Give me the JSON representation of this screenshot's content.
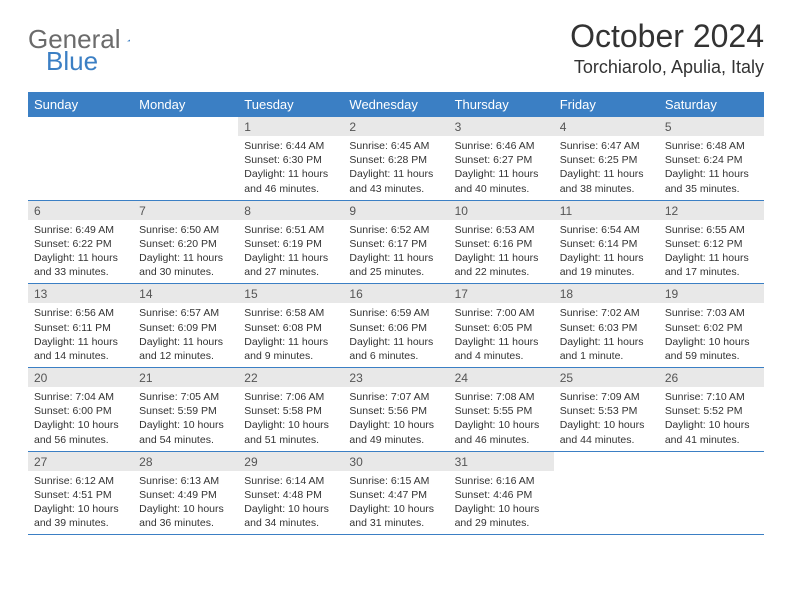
{
  "logo": {
    "part1": "General",
    "part2": "Blue"
  },
  "title": "October 2024",
  "location": "Torchiarolo, Apulia, Italy",
  "colors": {
    "header_bg": "#3b7fc4",
    "header_text": "#ffffff",
    "daynum_bg": "#e8e8e8",
    "border": "#3b7fc4",
    "logo_gray": "#6b6b6b",
    "logo_blue": "#3b7fc4"
  },
  "weekdays": [
    "Sunday",
    "Monday",
    "Tuesday",
    "Wednesday",
    "Thursday",
    "Friday",
    "Saturday"
  ],
  "cells": [
    {
      "empty": true
    },
    {
      "empty": true
    },
    {
      "day": "1",
      "sunrise": "Sunrise: 6:44 AM",
      "sunset": "Sunset: 6:30 PM",
      "daylight": "Daylight: 11 hours and 46 minutes."
    },
    {
      "day": "2",
      "sunrise": "Sunrise: 6:45 AM",
      "sunset": "Sunset: 6:28 PM",
      "daylight": "Daylight: 11 hours and 43 minutes."
    },
    {
      "day": "3",
      "sunrise": "Sunrise: 6:46 AM",
      "sunset": "Sunset: 6:27 PM",
      "daylight": "Daylight: 11 hours and 40 minutes."
    },
    {
      "day": "4",
      "sunrise": "Sunrise: 6:47 AM",
      "sunset": "Sunset: 6:25 PM",
      "daylight": "Daylight: 11 hours and 38 minutes."
    },
    {
      "day": "5",
      "sunrise": "Sunrise: 6:48 AM",
      "sunset": "Sunset: 6:24 PM",
      "daylight": "Daylight: 11 hours and 35 minutes."
    },
    {
      "day": "6",
      "sunrise": "Sunrise: 6:49 AM",
      "sunset": "Sunset: 6:22 PM",
      "daylight": "Daylight: 11 hours and 33 minutes."
    },
    {
      "day": "7",
      "sunrise": "Sunrise: 6:50 AM",
      "sunset": "Sunset: 6:20 PM",
      "daylight": "Daylight: 11 hours and 30 minutes."
    },
    {
      "day": "8",
      "sunrise": "Sunrise: 6:51 AM",
      "sunset": "Sunset: 6:19 PM",
      "daylight": "Daylight: 11 hours and 27 minutes."
    },
    {
      "day": "9",
      "sunrise": "Sunrise: 6:52 AM",
      "sunset": "Sunset: 6:17 PM",
      "daylight": "Daylight: 11 hours and 25 minutes."
    },
    {
      "day": "10",
      "sunrise": "Sunrise: 6:53 AM",
      "sunset": "Sunset: 6:16 PM",
      "daylight": "Daylight: 11 hours and 22 minutes."
    },
    {
      "day": "11",
      "sunrise": "Sunrise: 6:54 AM",
      "sunset": "Sunset: 6:14 PM",
      "daylight": "Daylight: 11 hours and 19 minutes."
    },
    {
      "day": "12",
      "sunrise": "Sunrise: 6:55 AM",
      "sunset": "Sunset: 6:12 PM",
      "daylight": "Daylight: 11 hours and 17 minutes."
    },
    {
      "day": "13",
      "sunrise": "Sunrise: 6:56 AM",
      "sunset": "Sunset: 6:11 PM",
      "daylight": "Daylight: 11 hours and 14 minutes."
    },
    {
      "day": "14",
      "sunrise": "Sunrise: 6:57 AM",
      "sunset": "Sunset: 6:09 PM",
      "daylight": "Daylight: 11 hours and 12 minutes."
    },
    {
      "day": "15",
      "sunrise": "Sunrise: 6:58 AM",
      "sunset": "Sunset: 6:08 PM",
      "daylight": "Daylight: 11 hours and 9 minutes."
    },
    {
      "day": "16",
      "sunrise": "Sunrise: 6:59 AM",
      "sunset": "Sunset: 6:06 PM",
      "daylight": "Daylight: 11 hours and 6 minutes."
    },
    {
      "day": "17",
      "sunrise": "Sunrise: 7:00 AM",
      "sunset": "Sunset: 6:05 PM",
      "daylight": "Daylight: 11 hours and 4 minutes."
    },
    {
      "day": "18",
      "sunrise": "Sunrise: 7:02 AM",
      "sunset": "Sunset: 6:03 PM",
      "daylight": "Daylight: 11 hours and 1 minute."
    },
    {
      "day": "19",
      "sunrise": "Sunrise: 7:03 AM",
      "sunset": "Sunset: 6:02 PM",
      "daylight": "Daylight: 10 hours and 59 minutes."
    },
    {
      "day": "20",
      "sunrise": "Sunrise: 7:04 AM",
      "sunset": "Sunset: 6:00 PM",
      "daylight": "Daylight: 10 hours and 56 minutes."
    },
    {
      "day": "21",
      "sunrise": "Sunrise: 7:05 AM",
      "sunset": "Sunset: 5:59 PM",
      "daylight": "Daylight: 10 hours and 54 minutes."
    },
    {
      "day": "22",
      "sunrise": "Sunrise: 7:06 AM",
      "sunset": "Sunset: 5:58 PM",
      "daylight": "Daylight: 10 hours and 51 minutes."
    },
    {
      "day": "23",
      "sunrise": "Sunrise: 7:07 AM",
      "sunset": "Sunset: 5:56 PM",
      "daylight": "Daylight: 10 hours and 49 minutes."
    },
    {
      "day": "24",
      "sunrise": "Sunrise: 7:08 AM",
      "sunset": "Sunset: 5:55 PM",
      "daylight": "Daylight: 10 hours and 46 minutes."
    },
    {
      "day": "25",
      "sunrise": "Sunrise: 7:09 AM",
      "sunset": "Sunset: 5:53 PM",
      "daylight": "Daylight: 10 hours and 44 minutes."
    },
    {
      "day": "26",
      "sunrise": "Sunrise: 7:10 AM",
      "sunset": "Sunset: 5:52 PM",
      "daylight": "Daylight: 10 hours and 41 minutes."
    },
    {
      "day": "27",
      "sunrise": "Sunrise: 6:12 AM",
      "sunset": "Sunset: 4:51 PM",
      "daylight": "Daylight: 10 hours and 39 minutes."
    },
    {
      "day": "28",
      "sunrise": "Sunrise: 6:13 AM",
      "sunset": "Sunset: 4:49 PM",
      "daylight": "Daylight: 10 hours and 36 minutes."
    },
    {
      "day": "29",
      "sunrise": "Sunrise: 6:14 AM",
      "sunset": "Sunset: 4:48 PM",
      "daylight": "Daylight: 10 hours and 34 minutes."
    },
    {
      "day": "30",
      "sunrise": "Sunrise: 6:15 AM",
      "sunset": "Sunset: 4:47 PM",
      "daylight": "Daylight: 10 hours and 31 minutes."
    },
    {
      "day": "31",
      "sunrise": "Sunrise: 6:16 AM",
      "sunset": "Sunset: 4:46 PM",
      "daylight": "Daylight: 10 hours and 29 minutes."
    },
    {
      "empty": true
    },
    {
      "empty": true
    }
  ]
}
